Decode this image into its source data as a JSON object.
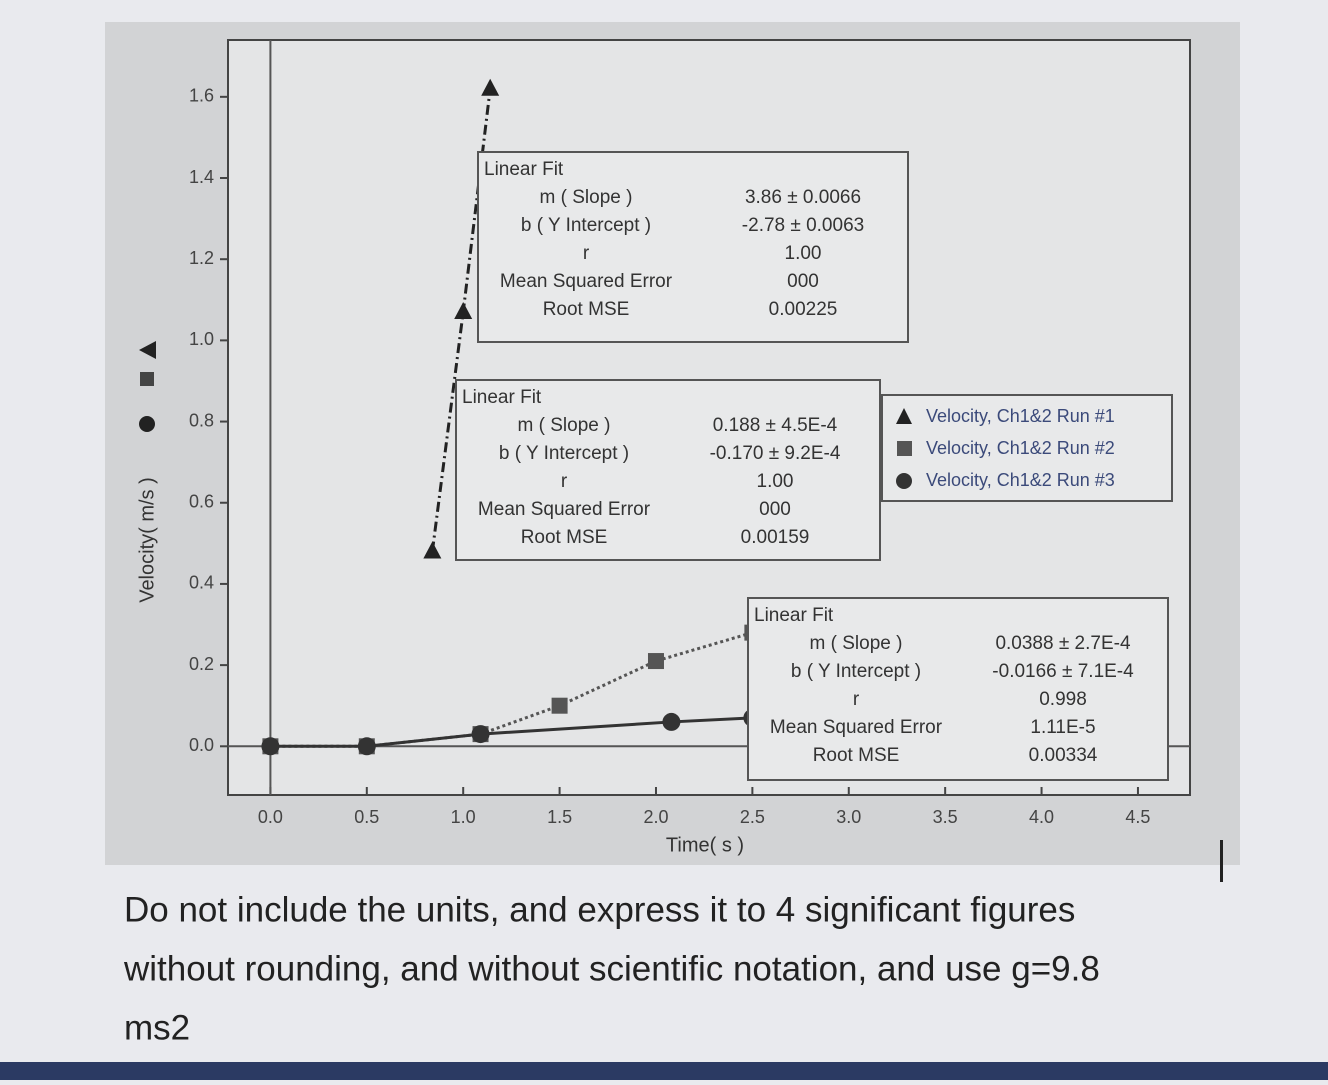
{
  "chart_data": {
    "type": "line",
    "x_label": "Time( s )",
    "y_label": "Velocity( m/s )",
    "xlim": [
      -0.22,
      4.77
    ],
    "ylim": [
      -0.12,
      1.74
    ],
    "xticks": [
      {
        "value": 0,
        "label": "0.0"
      },
      0.5,
      {
        "value": 1,
        "label": "1.0"
      },
      1.5,
      {
        "value": 2,
        "label": "2.0"
      },
      2.5,
      {
        "value": 3,
        "label": "3.0"
      },
      3.5,
      {
        "value": 4,
        "label": "4.0"
      },
      4.5
    ],
    "yticks": [
      {
        "value": 0,
        "label": "0.0"
      },
      0.2,
      0.4,
      0.6,
      0.8,
      {
        "value": 1,
        "label": "1.0"
      },
      1.2,
      1.4,
      1.6
    ],
    "series": [
      {
        "name": "Velocity, Ch1&2 Run #1",
        "color": "#222222",
        "marker": "triangle",
        "line_style": "dashdot",
        "x": [
          0.84,
          1.0,
          1.14
        ],
        "values": [
          0.48,
          1.07,
          1.62
        ]
      },
      {
        "name": "Velocity, Ch1&2 Run #2",
        "color": "#555555",
        "marker": "square",
        "line_style": "dotted",
        "x": [
          0.0,
          0.5,
          1.09,
          1.5,
          2.0,
          2.5
        ],
        "values": [
          0.0,
          0.0,
          0.03,
          0.1,
          0.21,
          0.28
        ]
      },
      {
        "name": "Velocity, Ch1&2 Run #3",
        "color": "#333333",
        "marker": "circle",
        "line_style": "solid",
        "x": [
          0.0,
          0.5,
          1.09,
          2.08,
          2.5
        ],
        "values": [
          0.0,
          0.0,
          0.03,
          0.06,
          0.07
        ]
      }
    ],
    "fits": [
      {
        "title": "Linear Fit",
        "rows": [
          [
            "m ( Slope )",
            "3.86 ± 0.0066"
          ],
          [
            "b ( Y Intercept )",
            "-2.78 ± 0.0063"
          ],
          [
            "r",
            "1.00"
          ],
          [
            "Mean Squared Error",
            "000"
          ],
          [
            "Root MSE",
            "0.00225"
          ]
        ]
      },
      {
        "title": "Linear Fit",
        "rows": [
          [
            "m ( Slope )",
            "0.188 ± 4.5E-4"
          ],
          [
            "b ( Y Intercept )",
            "-0.170 ± 9.2E-4"
          ],
          [
            "r",
            "1.00"
          ],
          [
            "Mean Squared Error",
            "000"
          ],
          [
            "Root MSE",
            "0.00159"
          ]
        ]
      },
      {
        "title": "Linear Fit",
        "rows": [
          [
            "m ( Slope )",
            "0.0388 ± 2.7E-4"
          ],
          [
            "b ( Y Intercept )",
            "-0.0166 ± 7.1E-4"
          ],
          [
            "r",
            "0.998"
          ],
          [
            "Mean Squared Error",
            "1.11E-5"
          ],
          [
            "Root MSE",
            "0.00334"
          ]
        ]
      }
    ],
    "grid": false
  },
  "question": {
    "lines": [
      "Do not include the units, and express it to 4 significant figures",
      "without rounding, and without scientific notation, and use g=9.8",
      "ms2"
    ]
  }
}
